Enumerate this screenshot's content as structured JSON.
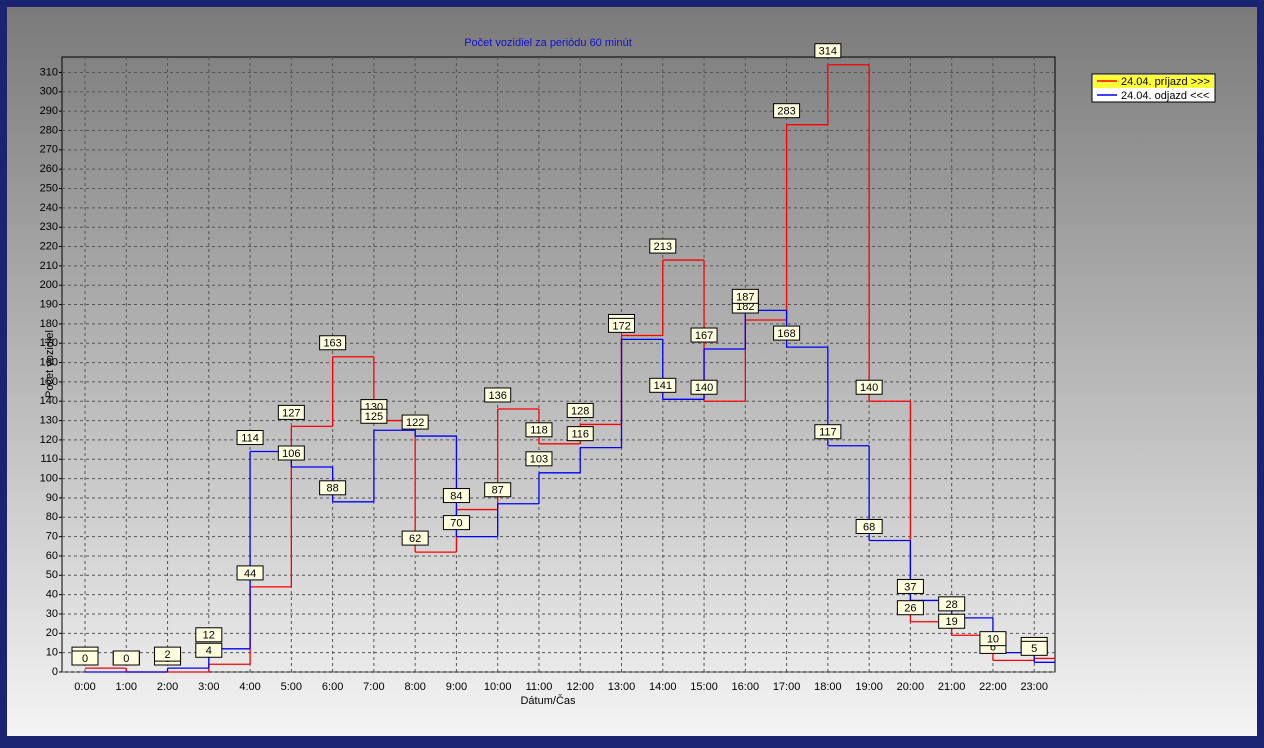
{
  "chart_data": {
    "type": "step",
    "title": "Počet vozidiel za periódu 60 minút",
    "x_label": "Dátum/Čas",
    "y_label": "Počet vozidiel",
    "categories": [
      "0:00",
      "1:00",
      "2:00",
      "3:00",
      "4:00",
      "5:00",
      "6:00",
      "7:00",
      "8:00",
      "9:00",
      "10:00",
      "11:00",
      "12:00",
      "13:00",
      "14:00",
      "15:00",
      "16:00",
      "17:00",
      "18:00",
      "19:00",
      "20:00",
      "21:00",
      "22:00",
      "23:00"
    ],
    "series": [
      {
        "name": "24.04.  príjazd >>>",
        "color": "#ff0000",
        "values": [
          2,
          0,
          0,
          4,
          44,
          127,
          163,
          130,
          62,
          84,
          136,
          118,
          128,
          174,
          213,
          140,
          182,
          283,
          314,
          140,
          26,
          19,
          6,
          7
        ]
      },
      {
        "name": "24.04.  odjazd <<<",
        "color": "#0000ff",
        "values": [
          0,
          0,
          2,
          12,
          114,
          106,
          88,
          125,
          122,
          70,
          87,
          103,
          116,
          172,
          141,
          167,
          187,
          168,
          117,
          68,
          37,
          28,
          10,
          5
        ]
      }
    ],
    "ylim": [
      0,
      318
    ],
    "yticks": [
      0,
      10,
      20,
      30,
      40,
      50,
      60,
      70,
      80,
      90,
      100,
      110,
      120,
      130,
      140,
      150,
      160,
      170,
      180,
      190,
      200,
      210,
      220,
      230,
      240,
      250,
      260,
      270,
      280,
      290,
      300,
      310
    ],
    "grid": true
  }
}
